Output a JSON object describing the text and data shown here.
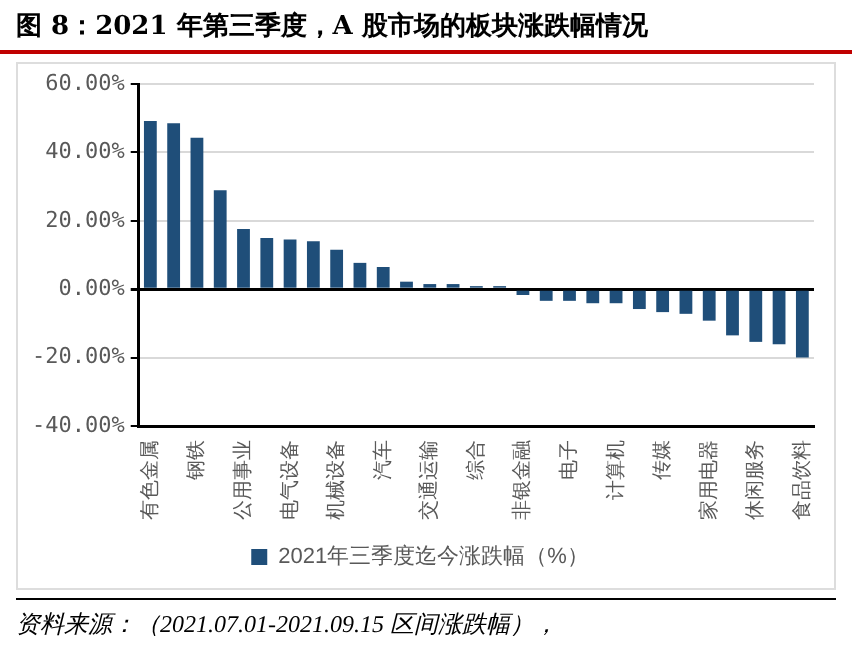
{
  "chart_data": {
    "type": "bar",
    "title": "图 8：2021 年第三季度，A 股市场的板块涨跌幅情况",
    "categories": [
      "有色金属",
      null,
      "钢铁",
      null,
      "公用事业",
      null,
      "电气设备",
      null,
      "机械设备",
      null,
      "汽车",
      null,
      "交通运输",
      null,
      "综合",
      null,
      "非银金融",
      null,
      "电子",
      null,
      "计算机",
      null,
      "传媒",
      null,
      "家用电器",
      null,
      "休闲服务",
      null,
      "食品饮料"
    ],
    "series": [
      {
        "name": "2021年三季度迄今涨跌幅（%）",
        "color": "#1f4e79",
        "values": [
          49.2,
          48.5,
          44.3,
          28.9,
          17.6,
          15.0,
          14.5,
          14.0,
          11.5,
          7.7,
          6.5,
          2.2,
          1.5,
          1.5,
          0.9,
          0.9,
          -1.7,
          -3.4,
          -3.4,
          -4.1,
          -4.1,
          -5.8,
          -6.7,
          -7.2,
          -9.2,
          -13.5,
          -15.4,
          -16.1,
          -20.0
        ]
      }
    ],
    "ylim": [
      -40,
      60
    ],
    "yticks": [
      {
        "value": -40,
        "label": "-40.00%"
      },
      {
        "value": -20,
        "label": "-20.00%"
      },
      {
        "value": 0,
        "label": "0.00%"
      },
      {
        "value": 20,
        "label": "20.00%"
      },
      {
        "value": 40,
        "label": "40.00%"
      },
      {
        "value": 60,
        "label": "60.00%"
      }
    ],
    "grid": "y",
    "legend": "bottom",
    "annotations": [
      "资料来源：（2021.07.01-2021.09.15 区间涨跌幅），"
    ]
  }
}
